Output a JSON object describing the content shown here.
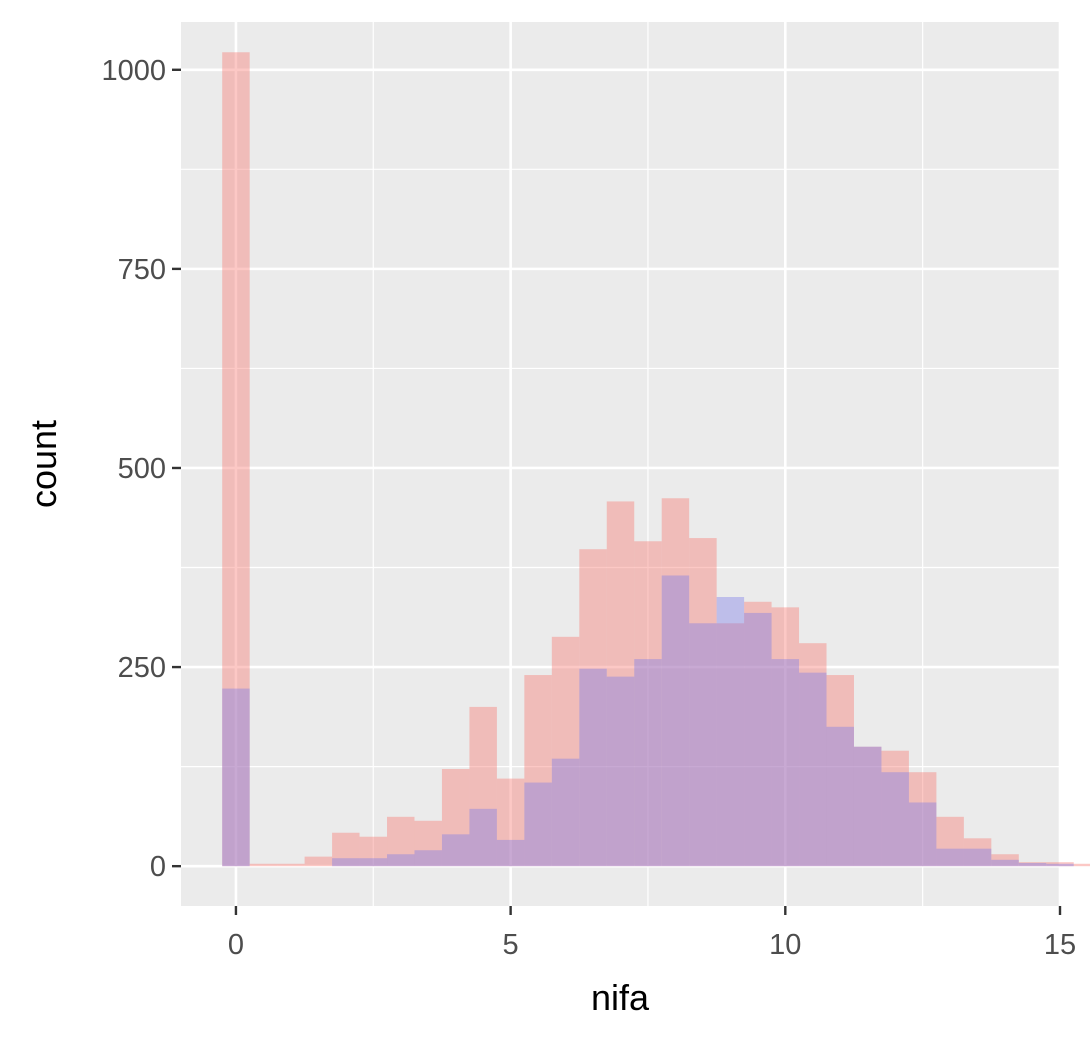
{
  "chart_data": {
    "type": "histogram",
    "xlabel": "nifa",
    "ylabel": "count",
    "xlim": [
      -1,
      15
    ],
    "ylim": [
      -50,
      1060
    ],
    "x_ticks": [
      0,
      5,
      10,
      15
    ],
    "x_tick_labels": [
      "0",
      "5",
      "10",
      "15"
    ],
    "y_ticks": [
      0,
      250,
      500,
      750,
      1000
    ],
    "y_tick_labels": [
      "0",
      "250",
      "500",
      "750",
      "1000"
    ],
    "grid": true,
    "legend": "none",
    "bin_start": -0.25,
    "bin_width": 0.5,
    "series": [
      {
        "color": "#f8766d",
        "values": [
          1022,
          3,
          3,
          12,
          42,
          37,
          62,
          57,
          122,
          200,
          110,
          240,
          288,
          398,
          458,
          408,
          462,
          412,
          305,
          332,
          325,
          280,
          240,
          150,
          145,
          118,
          62,
          35,
          15,
          5,
          5,
          3
        ]
      },
      {
        "color": "#7b7be8",
        "values": [
          223,
          0,
          0,
          0,
          10,
          10,
          15,
          20,
          40,
          72,
          33,
          105,
          135,
          248,
          238,
          260,
          365,
          305,
          338,
          318,
          260,
          243,
          175,
          150,
          118,
          80,
          22,
          22,
          8,
          4,
          3,
          0
        ]
      }
    ]
  }
}
